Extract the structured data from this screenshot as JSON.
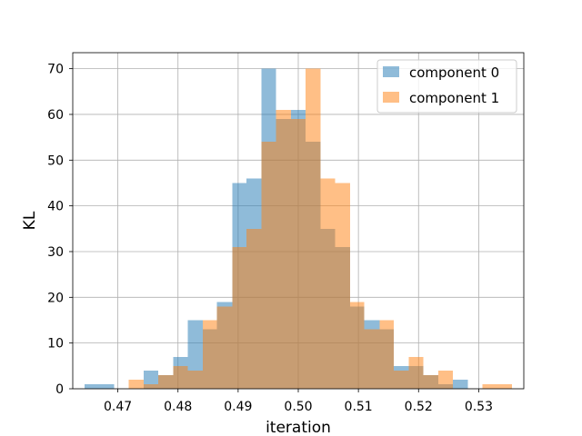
{
  "chart_data": {
    "type": "histogram",
    "xlabel": "iteration",
    "ylabel": "KL",
    "xlim": [
      0.4625,
      0.5375
    ],
    "ylim": [
      0,
      73.5
    ],
    "x_ticks": [
      0.47,
      0.48,
      0.49,
      0.5,
      0.51,
      0.52,
      0.53
    ],
    "x_tick_labels": [
      "0.47",
      "0.48",
      "0.49",
      "0.50",
      "0.51",
      "0.52",
      "0.53"
    ],
    "y_ticks": [
      0,
      10,
      20,
      30,
      40,
      50,
      60,
      70
    ],
    "y_tick_labels": [
      "0",
      "10",
      "20",
      "30",
      "40",
      "50",
      "60",
      "70"
    ],
    "grid": true,
    "legend_position": "top-right",
    "alpha": 0.5,
    "series": [
      {
        "name": "component 0",
        "color": "#1f77b4",
        "bin_edges": [
          0.4645,
          0.4694,
          0.4743,
          0.4792,
          0.4841,
          0.489,
          0.4939,
          0.4988,
          0.5037,
          0.5086,
          0.5135,
          0.5184,
          0.5233,
          0.5282,
          0.5331,
          0.538
        ],
        "bins": [
          {
            "x0": 0.4645,
            "x1": 0.4694,
            "count": 1
          },
          {
            "x0": 0.4743,
            "x1": 0.4767,
            "count": 4
          },
          {
            "x0": 0.4767,
            "x1": 0.4792,
            "count": 3
          },
          {
            "x0": 0.4792,
            "x1": 0.4816,
            "count": 7
          },
          {
            "x0": 0.4816,
            "x1": 0.4841,
            "count": 15
          },
          {
            "x0": 0.4841,
            "x1": 0.4865,
            "count": 13
          },
          {
            "x0": 0.4865,
            "x1": 0.489,
            "count": 19
          },
          {
            "x0": 0.489,
            "x1": 0.4914,
            "count": 45
          },
          {
            "x0": 0.4914,
            "x1": 0.4939,
            "count": 46
          },
          {
            "x0": 0.4939,
            "x1": 0.4963,
            "count": 70
          },
          {
            "x0": 0.4963,
            "x1": 0.4988,
            "count": 59
          },
          {
            "x0": 0.4988,
            "x1": 0.5012,
            "count": 61
          },
          {
            "x0": 0.5012,
            "x1": 0.5037,
            "count": 54
          },
          {
            "x0": 0.5037,
            "x1": 0.5061,
            "count": 35
          },
          {
            "x0": 0.5061,
            "x1": 0.5086,
            "count": 31
          },
          {
            "x0": 0.5086,
            "x1": 0.511,
            "count": 18
          },
          {
            "x0": 0.511,
            "x1": 0.5135,
            "count": 15
          },
          {
            "x0": 0.5135,
            "x1": 0.5159,
            "count": 13
          },
          {
            "x0": 0.5159,
            "x1": 0.5184,
            "count": 5
          },
          {
            "x0": 0.5184,
            "x1": 0.5208,
            "count": 5
          },
          {
            "x0": 0.5208,
            "x1": 0.5233,
            "count": 3
          },
          {
            "x0": 0.5233,
            "x1": 0.5257,
            "count": 1
          },
          {
            "x0": 0.5257,
            "x1": 0.5282,
            "count": 2
          }
        ]
      },
      {
        "name": "component 1",
        "color": "#ff7f0e",
        "bins": [
          {
            "x0": 0.4718,
            "x1": 0.4743,
            "count": 2
          },
          {
            "x0": 0.4743,
            "x1": 0.4767,
            "count": 1
          },
          {
            "x0": 0.4767,
            "x1": 0.4792,
            "count": 3
          },
          {
            "x0": 0.4792,
            "x1": 0.4816,
            "count": 5
          },
          {
            "x0": 0.4816,
            "x1": 0.4841,
            "count": 4
          },
          {
            "x0": 0.4841,
            "x1": 0.4865,
            "count": 15
          },
          {
            "x0": 0.4865,
            "x1": 0.489,
            "count": 18
          },
          {
            "x0": 0.489,
            "x1": 0.4914,
            "count": 31
          },
          {
            "x0": 0.4914,
            "x1": 0.4939,
            "count": 35
          },
          {
            "x0": 0.4939,
            "x1": 0.4963,
            "count": 54
          },
          {
            "x0": 0.4963,
            "x1": 0.4988,
            "count": 61
          },
          {
            "x0": 0.4988,
            "x1": 0.5012,
            "count": 59
          },
          {
            "x0": 0.5012,
            "x1": 0.5037,
            "count": 70
          },
          {
            "x0": 0.5037,
            "x1": 0.5061,
            "count": 46
          },
          {
            "x0": 0.5061,
            "x1": 0.5086,
            "count": 45
          },
          {
            "x0": 0.5086,
            "x1": 0.511,
            "count": 19
          },
          {
            "x0": 0.511,
            "x1": 0.5135,
            "count": 13
          },
          {
            "x0": 0.5135,
            "x1": 0.5159,
            "count": 15
          },
          {
            "x0": 0.5159,
            "x1": 0.5184,
            "count": 4
          },
          {
            "x0": 0.5184,
            "x1": 0.5208,
            "count": 7
          },
          {
            "x0": 0.5208,
            "x1": 0.5233,
            "count": 3
          },
          {
            "x0": 0.5233,
            "x1": 0.5257,
            "count": 4
          },
          {
            "x0": 0.5306,
            "x1": 0.5355,
            "count": 1
          }
        ]
      }
    ]
  }
}
